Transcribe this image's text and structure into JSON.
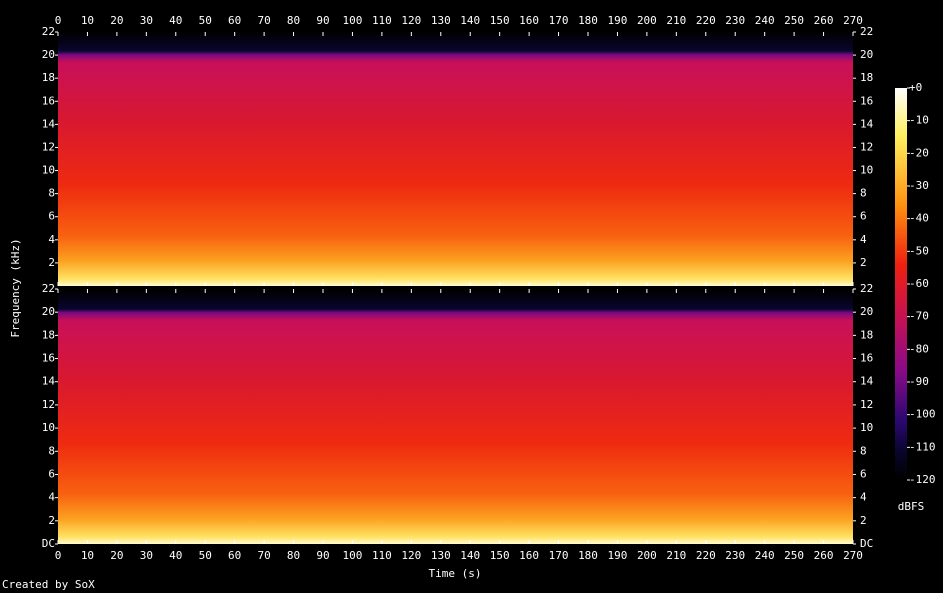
{
  "chart_data": [
    {
      "type": "spectrogram",
      "xlim": [
        0,
        270
      ],
      "xticks": [
        0,
        10,
        20,
        30,
        40,
        50,
        60,
        70,
        80,
        90,
        100,
        110,
        120,
        130,
        140,
        150,
        160,
        170,
        180,
        190,
        200,
        210,
        220,
        230,
        240,
        250,
        260,
        270
      ],
      "ylim": [
        0,
        22
      ],
      "yticks": [
        2,
        4,
        6,
        8,
        10,
        12,
        14,
        16,
        18,
        20,
        22
      ]
    },
    {
      "type": "spectrogram",
      "xlim": [
        0,
        270
      ],
      "xticks": [
        0,
        10,
        20,
        30,
        40,
        50,
        60,
        70,
        80,
        90,
        100,
        110,
        120,
        130,
        140,
        150,
        160,
        170,
        180,
        190,
        200,
        210,
        220,
        230,
        240,
        250,
        260,
        270
      ],
      "ylim": [
        0,
        22
      ],
      "yticks": [
        {
          "value": 0,
          "label": "DC"
        },
        2,
        4,
        6,
        8,
        10,
        12,
        14,
        16,
        18,
        20,
        22
      ]
    }
  ],
  "colorbar": {
    "label": "dBFS",
    "lim": [
      -120,
      0
    ],
    "ticks": [
      {
        "value": 0,
        "label": "+0"
      },
      -10,
      -20,
      -30,
      -40,
      -50,
      -60,
      -70,
      -80,
      -90,
      -100,
      -110,
      -120
    ]
  },
  "x_label": "Time (s)",
  "y_label": "Frequency (kHz)",
  "credit": "Created by SoX"
}
